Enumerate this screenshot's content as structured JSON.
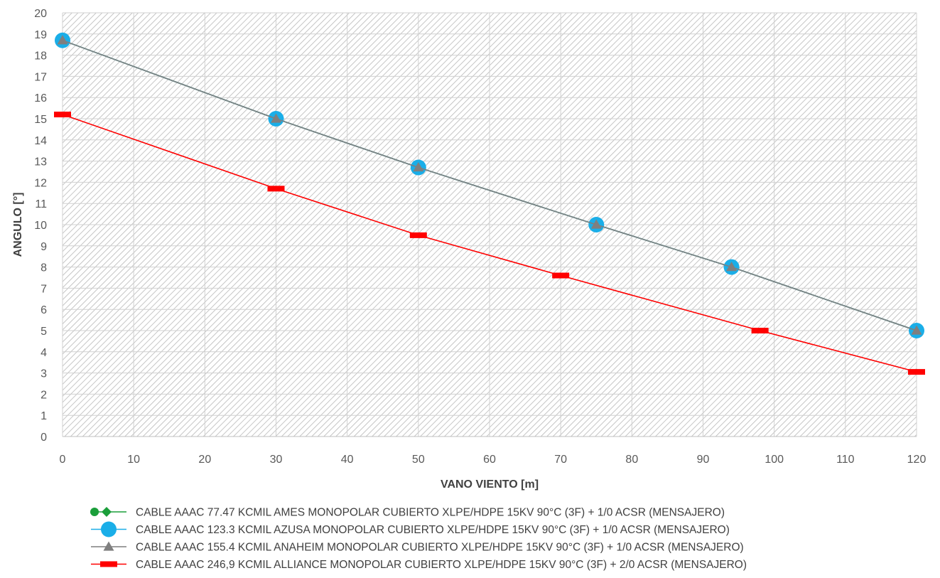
{
  "chart_data": {
    "type": "line",
    "title": "",
    "xlabel": "VANO VIENTO [m]",
    "ylabel": "ANGULO [°]",
    "xlim": [
      0,
      120
    ],
    "ylim": [
      0,
      20
    ],
    "xticks": [
      0,
      10,
      20,
      30,
      40,
      50,
      60,
      70,
      80,
      90,
      100,
      110,
      120
    ],
    "yticks": [
      0,
      1,
      2,
      3,
      4,
      5,
      6,
      7,
      8,
      9,
      10,
      11,
      12,
      13,
      14,
      15,
      16,
      17,
      18,
      19,
      20
    ],
    "grid": true,
    "plot_background": "hatched",
    "legend_position": "bottom",
    "series": [
      {
        "name": "CABLE AAAC 77.47 KCMIL AMES MONOPOLAR CUBIERTO XLPE/HDPE 15KV 90°C (3F) + 1/0 ACSR  (MENSAJERO)",
        "color": "#1a9e3a",
        "marker": "diamond",
        "x": [
          0,
          30,
          50,
          75,
          94,
          120
        ],
        "y": [
          18.7,
          15.0,
          12.7,
          10.0,
          8.0,
          5.0
        ]
      },
      {
        "name": "CABLE AAAC 123.3 KCMIL AZUSA MONOPOLAR CUBIERTO XLPE/HDPE 15KV 90°C (3F) + 1/0 ACSR  (MENSAJERO)",
        "color": "#1aaee8",
        "marker": "circle",
        "x": [
          0,
          30,
          50,
          75,
          94,
          120
        ],
        "y": [
          18.7,
          15.0,
          12.7,
          10.0,
          8.0,
          5.0
        ]
      },
      {
        "name": "CABLE AAAC 155.4 KCMIL ANAHEIM MONOPOLAR CUBIERTO XLPE/HDPE 15KV 90°C (3F) + 1/0 ACSR  (MENSAJERO)",
        "color": "#7f7f7f",
        "marker": "triangle",
        "x": [
          0,
          30,
          50,
          75,
          94,
          120
        ],
        "y": [
          18.7,
          15.0,
          12.7,
          10.0,
          8.0,
          5.0
        ]
      },
      {
        "name": "CABLE AAAC 246,9 KCMIL ALLIANCE MONOPOLAR CUBIERTO XLPE/HDPE 15KV 90°C (3F) + 2/0 ACSR  (MENSAJERO)",
        "color": "#ff0000",
        "marker": "dash",
        "x": [
          0,
          30,
          50,
          70,
          98,
          120
        ],
        "y": [
          15.2,
          11.7,
          9.5,
          7.6,
          5.0,
          3.05
        ]
      }
    ]
  }
}
